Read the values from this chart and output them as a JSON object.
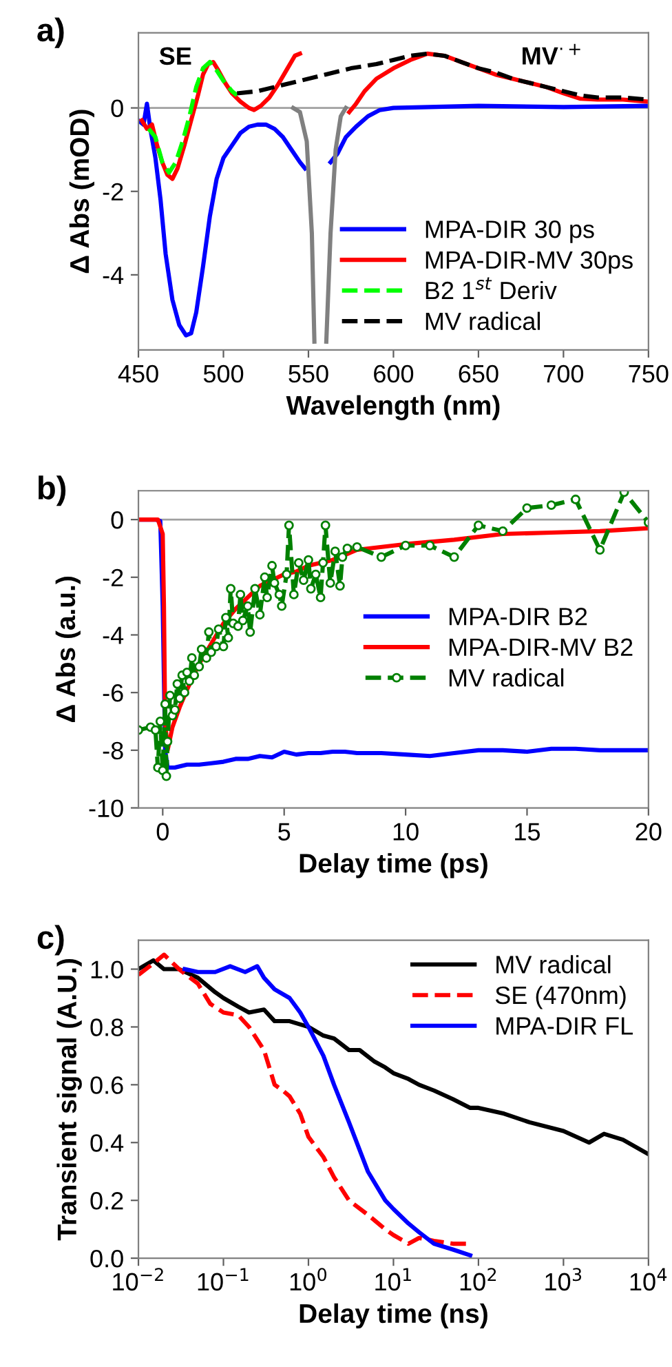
{
  "chart_data": [
    {
      "type": "line",
      "title": "a)",
      "xlabel": "Wavelength (nm)",
      "ylabel": "Δ Abs (mOD)",
      "xlim": [
        450,
        750
      ],
      "xticks": [
        450,
        500,
        550,
        600,
        650,
        700,
        750
      ],
      "ylim": [
        -5.8,
        1.8
      ],
      "yticks": [
        -4,
        -2,
        0
      ],
      "legend": "bottom right",
      "grid": false,
      "ref_lines": [
        {
          "axis": "y",
          "value": 0,
          "color": "#a0a0a0"
        }
      ],
      "annotations": [
        "SE",
        "MV$^{·+}$"
      ],
      "series": [
        {
          "name": "MPA-DIR 30 ps",
          "color": "#0000ff",
          "x": [
            450,
            453,
            455,
            457,
            460,
            463,
            466,
            470,
            474,
            478,
            481,
            484,
            488,
            492,
            496,
            500,
            505,
            510,
            515,
            520,
            525,
            530,
            535,
            540,
            545,
            548,
            555,
            563,
            567,
            572,
            578,
            585,
            592,
            600,
            650,
            700,
            750
          ],
          "values": [
            -0.3,
            -0.4,
            0.1,
            -0.5,
            -1.2,
            -2.2,
            -3.5,
            -4.6,
            -5.2,
            -5.45,
            -5.4,
            -4.9,
            -3.8,
            -2.6,
            -1.7,
            -1.2,
            -0.9,
            -0.6,
            -0.45,
            -0.4,
            -0.4,
            -0.5,
            -0.7,
            -1.0,
            -1.3,
            -1.45,
            null,
            -1.3,
            -1.1,
            -0.7,
            -0.45,
            -0.2,
            -0.05,
            0,
            0.05,
            0.02,
            0.05
          ]
        },
        {
          "name": "MPA-DIR-MV 30ps",
          "color": "#ff0000",
          "x": [
            452,
            455,
            458,
            461,
            464,
            467,
            470,
            473,
            477,
            481,
            485,
            488,
            491,
            494,
            497,
            501,
            505,
            510,
            515,
            518,
            522,
            527,
            532,
            537,
            542,
            545,
            560,
            574,
            578,
            583,
            590,
            600,
            610,
            620,
            630,
            640,
            650,
            660,
            670,
            680,
            690,
            700,
            710,
            720,
            735,
            750
          ],
          "values": [
            -0.3,
            -0.5,
            -0.4,
            -0.9,
            -1.3,
            -1.6,
            -1.7,
            -1.45,
            -0.9,
            -0.3,
            0.3,
            0.8,
            1.05,
            1.1,
            0.9,
            0.6,
            0.35,
            0.15,
            0.0,
            -0.05,
            0.05,
            0.25,
            0.55,
            0.9,
            1.25,
            1.3,
            null,
            -0.1,
            0.1,
            0.4,
            0.7,
            0.95,
            1.15,
            1.3,
            1.25,
            1.1,
            0.95,
            0.8,
            0.7,
            0.6,
            0.5,
            0.35,
            0.22,
            0.2,
            0.2,
            0.15
          ]
        },
        {
          "color": "#808080",
          "x": [
            541,
            545,
            549,
            552,
            553.5,
            557,
            560.5,
            563,
            566,
            569,
            572
          ],
          "values": [
            0,
            -0.1,
            -0.8,
            -3.0,
            -5.6,
            null,
            -5.6,
            -3.0,
            -1.0,
            -0.2,
            0
          ]
        },
        {
          "name": "B2 1$^{st}$ Deriv",
          "color": "#00ff00",
          "line_style": "dashed",
          "x": [
            456,
            460,
            464,
            468,
            472,
            476,
            480,
            484,
            488,
            492,
            496,
            500,
            505,
            508
          ],
          "values": [
            -0.5,
            -0.7,
            -1.3,
            -1.55,
            -1.3,
            -0.8,
            -0.2,
            0.5,
            0.95,
            1.1,
            0.9,
            0.65,
            0.4,
            0.3
          ]
        },
        {
          "name": "MV radical",
          "color": "#000000",
          "line_style": "dashed",
          "x": [
            508,
            520,
            530,
            545,
            560,
            575,
            590,
            600,
            610,
            620,
            630,
            640,
            650,
            660,
            670,
            680,
            690,
            700,
            710,
            720,
            735,
            750
          ],
          "values": [
            0.35,
            0.4,
            0.5,
            0.65,
            0.8,
            0.95,
            1.05,
            1.15,
            1.25,
            1.3,
            1.25,
            1.1,
            0.95,
            0.85,
            0.7,
            0.6,
            0.5,
            0.4,
            0.3,
            0.25,
            0.25,
            0.2
          ]
        }
      ]
    },
    {
      "type": "line",
      "title": "b)",
      "xlabel": "Delay time (ps)",
      "ylabel": "Δ Abs (a.u.)",
      "xlim": [
        -1,
        20
      ],
      "xticks": [
        0,
        5,
        10,
        15,
        20
      ],
      "ylim": [
        -10,
        1
      ],
      "yticks": [
        -10,
        -8,
        -6,
        -4,
        -2,
        0
      ],
      "legend": "right",
      "grid": false,
      "ref_lines": [
        {
          "axis": "y",
          "value": 0,
          "color": "#a0a0a0"
        }
      ],
      "series": [
        {
          "name": "MPA-DIR B2",
          "color": "#0000ff",
          "x": [
            -1,
            -0.3,
            -0.1,
            0.0,
            0.1,
            0.2,
            0.5,
            1,
            1.5,
            2,
            2.5,
            3,
            3.5,
            4,
            4.5,
            5,
            5.5,
            6,
            6.5,
            7,
            7.5,
            8,
            9,
            10,
            11,
            12,
            13,
            14,
            15,
            16,
            17,
            18,
            19,
            20
          ],
          "values": [
            0,
            0,
            -0.05,
            -3,
            -8,
            -8.6,
            -8.6,
            -8.5,
            -8.5,
            -8.45,
            -8.4,
            -8.3,
            -8.3,
            -8.2,
            -8.25,
            -8.05,
            -8.15,
            -8.1,
            -8.1,
            -8.05,
            -8.05,
            -8.1,
            -8.1,
            -8.15,
            -8.2,
            -8.1,
            -8.0,
            -8.0,
            -8.05,
            -7.95,
            -7.95,
            -8.0,
            -8.0,
            -8.0
          ]
        },
        {
          "name": "MPA-DIR-MV B2",
          "color": "#ff0000",
          "x": [
            -1,
            -0.2,
            0,
            0.05,
            0.1,
            0.2,
            0.4,
            0.7,
            1,
            1.5,
            2,
            2.5,
            3,
            3.5,
            4,
            4.5,
            5,
            5.5,
            6,
            7,
            8,
            10,
            12,
            14,
            16,
            18,
            20
          ],
          "values": [
            0,
            0,
            -0.5,
            -3,
            -7,
            -8.0,
            -7.2,
            -6.5,
            -5.9,
            -5.0,
            -4.3,
            -3.6,
            -3.1,
            -2.7,
            -2.3,
            -2.1,
            -1.9,
            -1.8,
            -1.6,
            -1.4,
            -1.05,
            -0.85,
            -0.7,
            -0.5,
            -0.45,
            -0.4,
            -0.3
          ]
        },
        {
          "name": "MV radical",
          "color": "#008000",
          "marker": "circle",
          "line_style": "dashed",
          "x": [
            -1,
            -0.5,
            -0.3,
            -0.2,
            -0.1,
            0,
            0.1,
            0.15,
            0.2,
            0.3,
            0.4,
            0.5,
            0.6,
            0.7,
            0.8,
            0.9,
            1.0,
            1.1,
            1.2,
            1.3,
            1.5,
            1.6,
            1.8,
            1.9,
            2.0,
            2.2,
            2.3,
            2.5,
            2.6,
            2.7,
            2.8,
            2.9,
            3.1,
            3.2,
            3.3,
            3.5,
            3.6,
            3.8,
            4.0,
            4.2,
            4.3,
            4.5,
            4.6,
            4.8,
            4.9,
            5.1,
            5.2,
            5.4,
            5.6,
            5.8,
            6.0,
            6.1,
            6.3,
            6.5,
            6.6,
            6.7,
            6.9,
            7.1,
            7.3,
            7.4,
            7.6,
            8.0,
            9.0,
            10.0,
            11.0,
            12.0,
            13.0,
            14.0,
            15.0,
            16.0,
            17.0,
            18.0,
            19.0,
            20.0
          ],
          "values": [
            -7.3,
            -7.2,
            -7.3,
            -8.6,
            -7.0,
            -8.7,
            -6.4,
            -8.9,
            -7.7,
            -6.1,
            -6.8,
            -6.6,
            -5.7,
            -6.2,
            -5.4,
            -6.0,
            -5.3,
            -5.6,
            -4.8,
            -5.4,
            -5.1,
            -4.5,
            -4.8,
            -3.9,
            -4.6,
            -4.4,
            -3.8,
            -4.4,
            -3.4,
            -4.1,
            -2.4,
            -3.6,
            -3.7,
            -2.6,
            -3.5,
            -3.0,
            -3.9,
            -2.4,
            -3.3,
            -2.0,
            -2.7,
            -1.6,
            -2.2,
            -2.6,
            -3.0,
            -1.9,
            -0.2,
            -2.6,
            -1.5,
            -2.1,
            -1.4,
            -2.4,
            -1.9,
            -2.7,
            -1.5,
            -0.2,
            -2.2,
            -1.1,
            -2.3,
            -1.3,
            -1.0,
            -0.95,
            -1.3,
            -0.9,
            -0.9,
            -1.3,
            -0.2,
            -0.4,
            0.4,
            0.5,
            0.7,
            -1.05,
            0.95,
            -0.1
          ]
        }
      ]
    },
    {
      "type": "line",
      "title": "c)",
      "xlabel": "Delay time (ns)",
      "ylabel": "Transient signal (A.U.)",
      "log": "x",
      "xlim": [
        0.01,
        10000
      ],
      "xticks": [
        {
          "value": 0.01,
          "label": "10$^{−2}$"
        },
        {
          "value": 0.1,
          "label": "10$^{−1}$"
        },
        {
          "value": 1,
          "label": "10$^{0}$"
        },
        {
          "value": 10,
          "label": "10$^{1}$"
        },
        {
          "value": 100,
          "label": "10$^{2}$"
        },
        {
          "value": 1000,
          "label": "10$^{3}$"
        },
        {
          "value": 10000,
          "label": "10$^{4}$"
        }
      ],
      "ylim": [
        0,
        1.1
      ],
      "yticks": [
        {
          "value": 0,
          "label": "0.0"
        },
        {
          "value": 0.2,
          "label": "0.2"
        },
        {
          "value": 0.4,
          "label": "0.4"
        },
        {
          "value": 0.6,
          "label": "0.6"
        },
        {
          "value": 0.8,
          "label": "0.8"
        },
        {
          "value": 1.0,
          "label": "1.0"
        }
      ],
      "legend": "top right",
      "grid": false,
      "series": [
        {
          "name": "MV radical",
          "color": "#000000",
          "x": [
            0.01,
            0.015,
            0.02,
            0.03,
            0.05,
            0.08,
            0.1,
            0.15,
            0.2,
            0.3,
            0.4,
            0.6,
            1,
            1.5,
            2,
            3,
            4,
            6,
            8,
            10,
            15,
            20,
            30,
            50,
            80,
            100,
            200,
            400,
            1000,
            2000,
            3000,
            5000,
            10000
          ],
          "values": [
            1.0,
            1.03,
            1.0,
            1.0,
            0.97,
            0.92,
            0.9,
            0.87,
            0.85,
            0.86,
            0.82,
            0.82,
            0.8,
            0.77,
            0.76,
            0.72,
            0.72,
            0.68,
            0.66,
            0.64,
            0.62,
            0.6,
            0.58,
            0.55,
            0.52,
            0.52,
            0.5,
            0.47,
            0.44,
            0.4,
            0.43,
            0.41,
            0.36
          ]
        },
        {
          "name": "SE (470nm)",
          "color": "#ff0000",
          "line_style": "dashed",
          "x": [
            0.01,
            0.015,
            0.02,
            0.03,
            0.05,
            0.07,
            0.1,
            0.15,
            0.2,
            0.3,
            0.4,
            0.5,
            0.6,
            0.8,
            1,
            1.5,
            2,
            3,
            5,
            8,
            10,
            15,
            20,
            30,
            50,
            80
          ],
          "values": [
            0.98,
            1.02,
            1.05,
            1.0,
            0.95,
            0.88,
            0.85,
            0.84,
            0.8,
            0.72,
            0.6,
            0.58,
            0.56,
            0.5,
            0.42,
            0.35,
            0.28,
            0.2,
            0.15,
            0.1,
            0.08,
            0.05,
            0.07,
            0.06,
            0.05,
            0.05
          ]
        },
        {
          "name": "MPA-DIR FL",
          "color": "#0000ff",
          "x": [
            0.035,
            0.05,
            0.08,
            0.12,
            0.18,
            0.25,
            0.3,
            0.4,
            0.6,
            0.8,
            1,
            1.5,
            2,
            3,
            5,
            8,
            10,
            15,
            20,
            30,
            50,
            80
          ],
          "values": [
            1.0,
            0.99,
            0.99,
            1.01,
            0.99,
            1.01,
            0.97,
            0.93,
            0.9,
            0.85,
            0.8,
            0.7,
            0.6,
            0.47,
            0.3,
            0.2,
            0.17,
            0.12,
            0.09,
            0.05,
            0.03,
            0.01
          ]
        }
      ]
    }
  ]
}
